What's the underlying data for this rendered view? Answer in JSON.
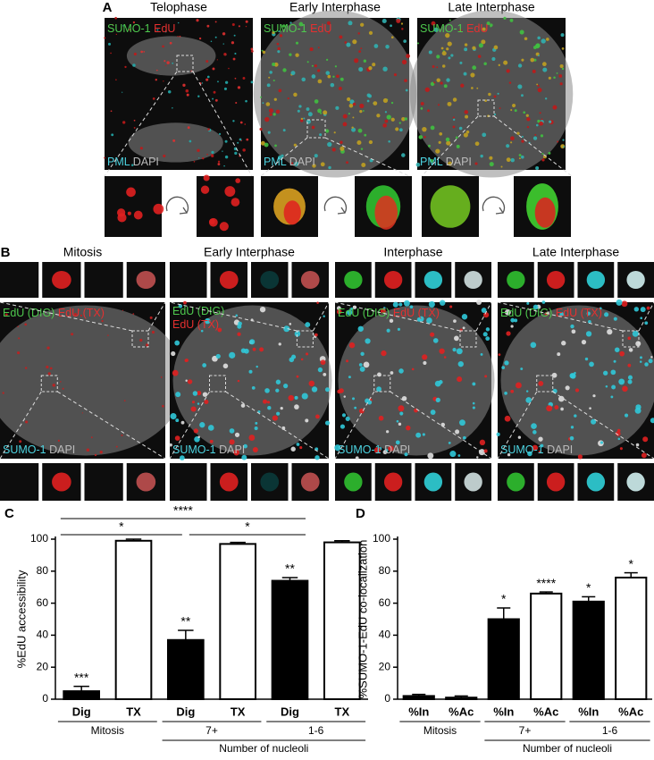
{
  "panel_a": {
    "label": "A",
    "images": [
      {
        "title": "Telophase",
        "top": [
          "SUMO-1",
          "EdU"
        ],
        "bottom": [
          "PML",
          "DAPI"
        ]
      },
      {
        "title": "Early Interphase",
        "top": [
          "SUMO-1",
          "EdU"
        ],
        "bottom": [
          "PML",
          "DAPI"
        ]
      },
      {
        "title": "Late Interphase",
        "top": [
          "SUMO-1",
          "EdU"
        ],
        "bottom": [
          "PML",
          "DAPI"
        ]
      }
    ]
  },
  "panel_b": {
    "label": "B",
    "images": [
      {
        "title": "Mitosis",
        "top": [
          "EdU (DIG)",
          "EdU (TX)"
        ],
        "bottom": [
          "SUMO-1",
          "DAPI"
        ]
      },
      {
        "title": "Early Interphase",
        "top": [
          "EdU (DIG)",
          "EdU (TX)"
        ],
        "bottom": [
          "SUMO-1",
          "DAPI"
        ]
      },
      {
        "title": "Interphase",
        "top": [
          "EdU (DIG)",
          "EdU (TX)"
        ],
        "bottom": [
          "SUMO-1",
          "DAPI"
        ]
      },
      {
        "title": "Late Interphase",
        "top": [
          "EdU (DIG)",
          "EdU (TX)"
        ],
        "bottom": [
          "SUMO-1",
          "DAPI"
        ]
      }
    ]
  },
  "chart_data": [
    {
      "type": "bar",
      "panel_label": "C",
      "ylabel": "%EdU accessibility",
      "categories": [
        "Dig",
        "TX",
        "Dig",
        "TX",
        "Dig",
        "TX"
      ],
      "values": [
        5,
        99,
        37,
        97,
        74,
        98
      ],
      "errors": [
        3,
        1,
        6,
        1,
        2,
        1
      ],
      "colors": [
        "#000000",
        "#ffffff",
        "#000000",
        "#ffffff",
        "#000000",
        "#ffffff"
      ],
      "bar_annotations": [
        "***",
        null,
        "**",
        null,
        "**",
        null
      ],
      "groups": [
        "Mitosis",
        "7+",
        "1-6"
      ],
      "xlabel": "Number of nucleoli",
      "brackets": [
        "*",
        "****",
        "*"
      ],
      "ylim": [
        0,
        100
      ],
      "yticks": [
        0,
        20,
        40,
        60,
        80,
        100
      ]
    },
    {
      "type": "bar",
      "panel_label": "D",
      "ylabel": "%SUMO-1-EdU co-localization",
      "categories": [
        "%In",
        "%Ac",
        "%In",
        "%Ac",
        "%In",
        "%Ac"
      ],
      "values": [
        2,
        1,
        50,
        66,
        61,
        76
      ],
      "errors": [
        1,
        1,
        7,
        1,
        3,
        3
      ],
      "colors": [
        "#000000",
        "#ffffff",
        "#000000",
        "#ffffff",
        "#000000",
        "#ffffff"
      ],
      "bar_annotations": [
        null,
        null,
        "*",
        "****",
        "*",
        "*"
      ],
      "groups": [
        "Mitosis",
        "7+",
        "1-6"
      ],
      "xlabel": "Number of nucleoli",
      "ylim": [
        0,
        100
      ],
      "yticks": [
        0,
        20,
        40,
        60,
        80,
        100
      ]
    }
  ]
}
